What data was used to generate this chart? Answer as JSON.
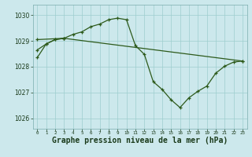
{
  "background_color": "#cce8ec",
  "line_color": "#2d5a1b",
  "grid_color": "#9ecece",
  "xlabel": "Graphe pression niveau de la mer (hPa)",
  "xlabel_fontsize": 7,
  "ylim": [
    1025.6,
    1030.4
  ],
  "xlim": [
    -0.5,
    23.5
  ],
  "yticks": [
    1026,
    1027,
    1028,
    1029,
    1030
  ],
  "xticks": [
    0,
    1,
    2,
    3,
    4,
    5,
    6,
    7,
    8,
    9,
    10,
    11,
    12,
    13,
    14,
    15,
    16,
    17,
    18,
    19,
    20,
    21,
    22,
    23
  ],
  "series": [
    {
      "x": [
        0,
        1,
        2,
        3,
        4,
        5,
        6,
        7,
        8,
        9,
        10,
        11,
        12,
        13,
        14,
        15,
        16,
        17,
        18,
        19,
        20,
        21,
        22,
        23
      ],
      "y": [
        1028.65,
        1028.88,
        1029.05,
        1029.1,
        1029.25,
        1029.35,
        1029.55,
        1029.65,
        1029.82,
        1029.88,
        1029.82,
        1028.82,
        1028.48,
        1027.42,
        1027.12,
        1026.72,
        1026.42,
        1026.8,
        1027.05,
        1027.25,
        1027.75,
        1028.02,
        1028.18,
        1028.22
      ]
    },
    {
      "x": [
        0,
        3,
        23
      ],
      "y": [
        1029.05,
        1029.1,
        1028.22
      ]
    },
    {
      "x": [
        0,
        1,
        2,
        3
      ],
      "y": [
        1028.35,
        1028.88,
        1029.05,
        1029.1
      ]
    }
  ]
}
